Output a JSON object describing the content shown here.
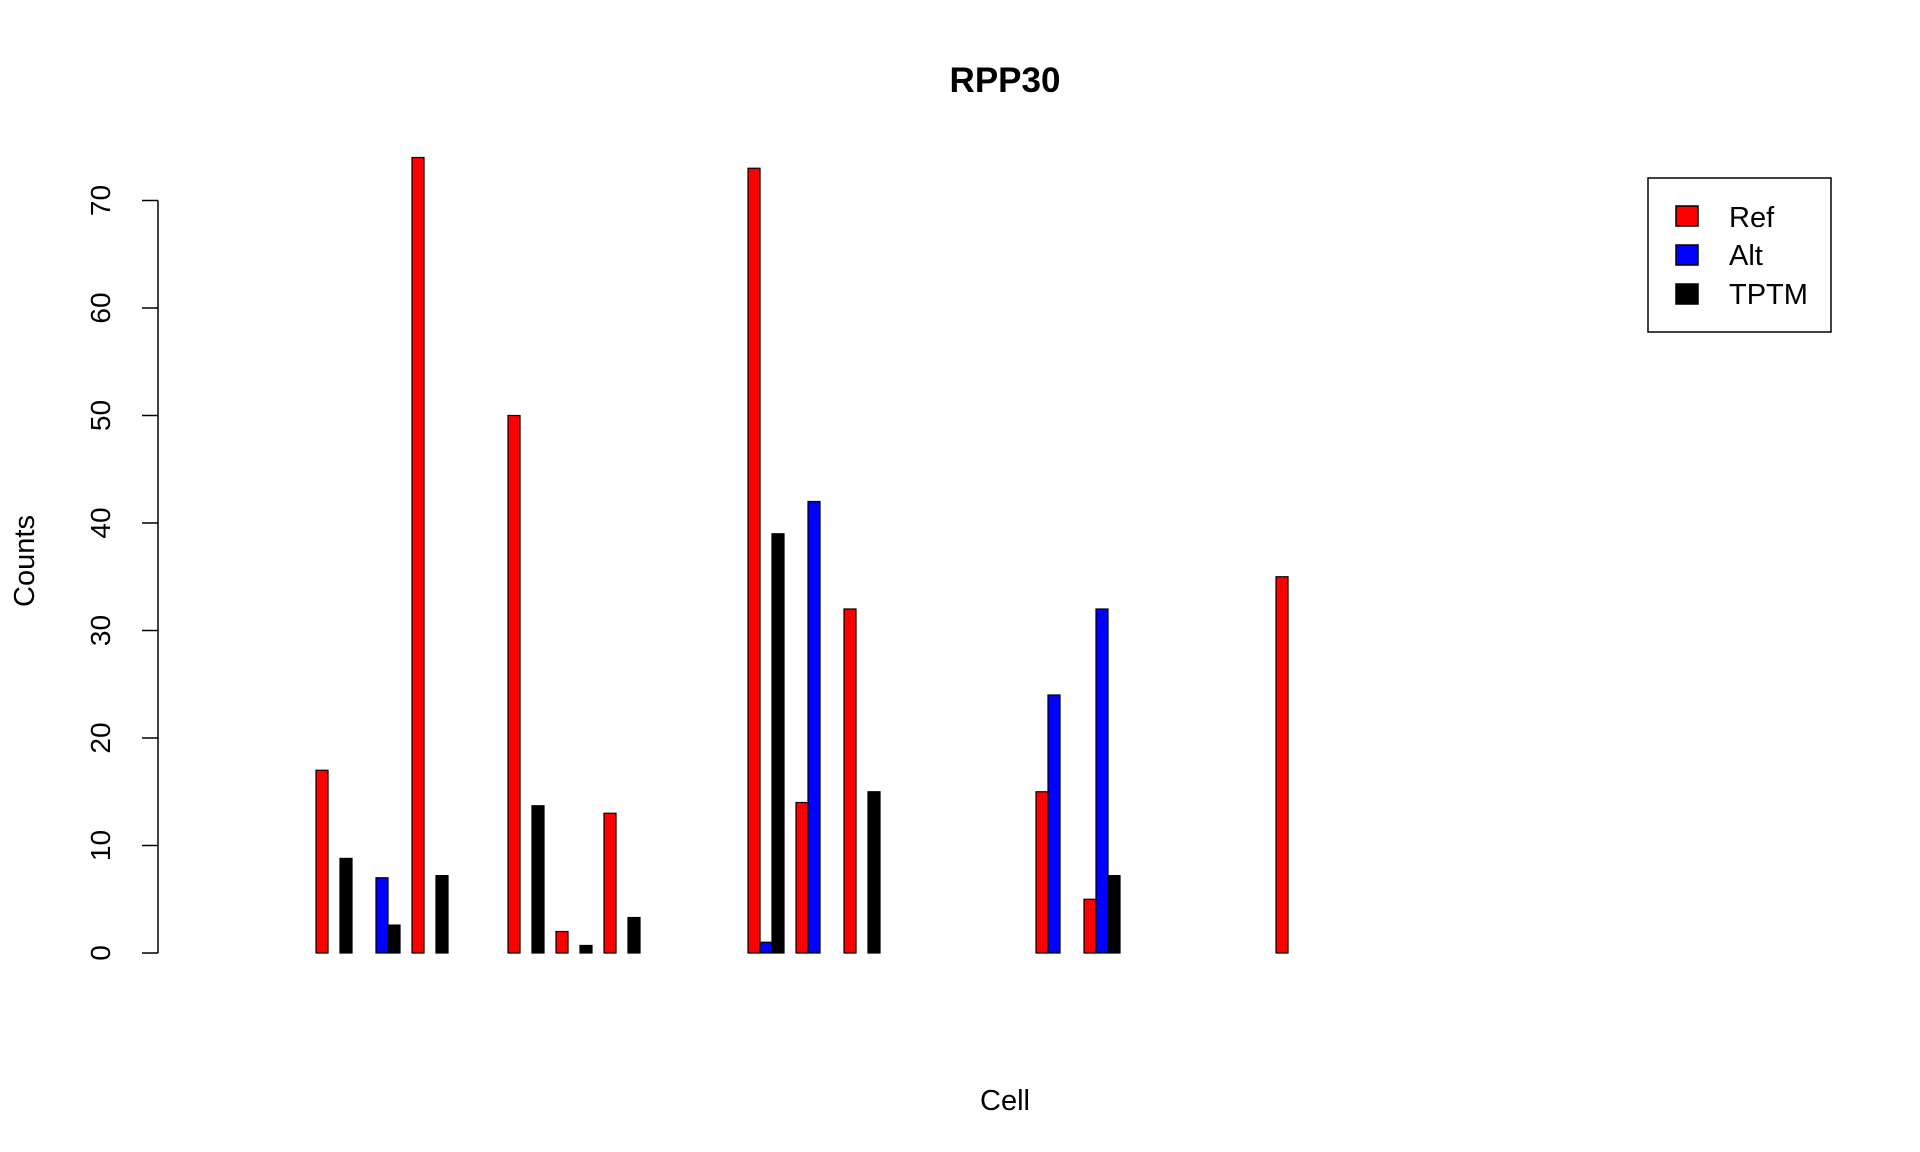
{
  "chart_data": {
    "type": "bar",
    "title": "RPP30",
    "xlabel": "Cell",
    "ylabel": "Counts",
    "ylim": [
      0,
      70
    ],
    "yticks": [
      0,
      10,
      20,
      30,
      40,
      50,
      60,
      70
    ],
    "grid": false,
    "legend": {
      "placement": "top-right"
    },
    "categories": [
      "",
      "",
      "",
      "",
      "",
      "",
      "",
      "",
      "",
      "",
      "",
      "",
      "",
      "",
      "",
      "",
      "",
      "",
      "",
      "",
      "",
      "",
      "",
      "",
      "",
      ""
    ],
    "series": [
      {
        "name": "Ref",
        "color": "#ff0000",
        "values": [
          0,
          0,
          0,
          17,
          0,
          74,
          0,
          50,
          2,
          13,
          0,
          0,
          73,
          14,
          32,
          0,
          0,
          0,
          15,
          5,
          0,
          0,
          0,
          35,
          0,
          0
        ]
      },
      {
        "name": "Alt",
        "color": "#0000ff",
        "values": [
          0,
          0,
          0,
          0,
          7,
          0,
          0,
          0,
          0,
          0,
          0,
          0,
          1,
          42,
          0,
          0,
          0,
          0,
          24,
          32,
          0,
          0,
          0,
          0,
          0,
          0
        ]
      },
      {
        "name": "TPTM",
        "color": "#000000",
        "values": [
          0,
          0,
          0,
          8.8,
          2.6,
          7.2,
          0,
          13.7,
          0.7,
          3.3,
          0,
          0,
          39,
          0,
          15,
          0,
          0,
          0,
          0,
          7.2,
          0,
          0,
          0,
          0,
          0,
          0
        ]
      }
    ],
    "visible_groups": [
      3,
      4,
      5,
      7,
      8,
      9,
      12,
      13,
      14,
      18,
      19,
      23
    ]
  }
}
